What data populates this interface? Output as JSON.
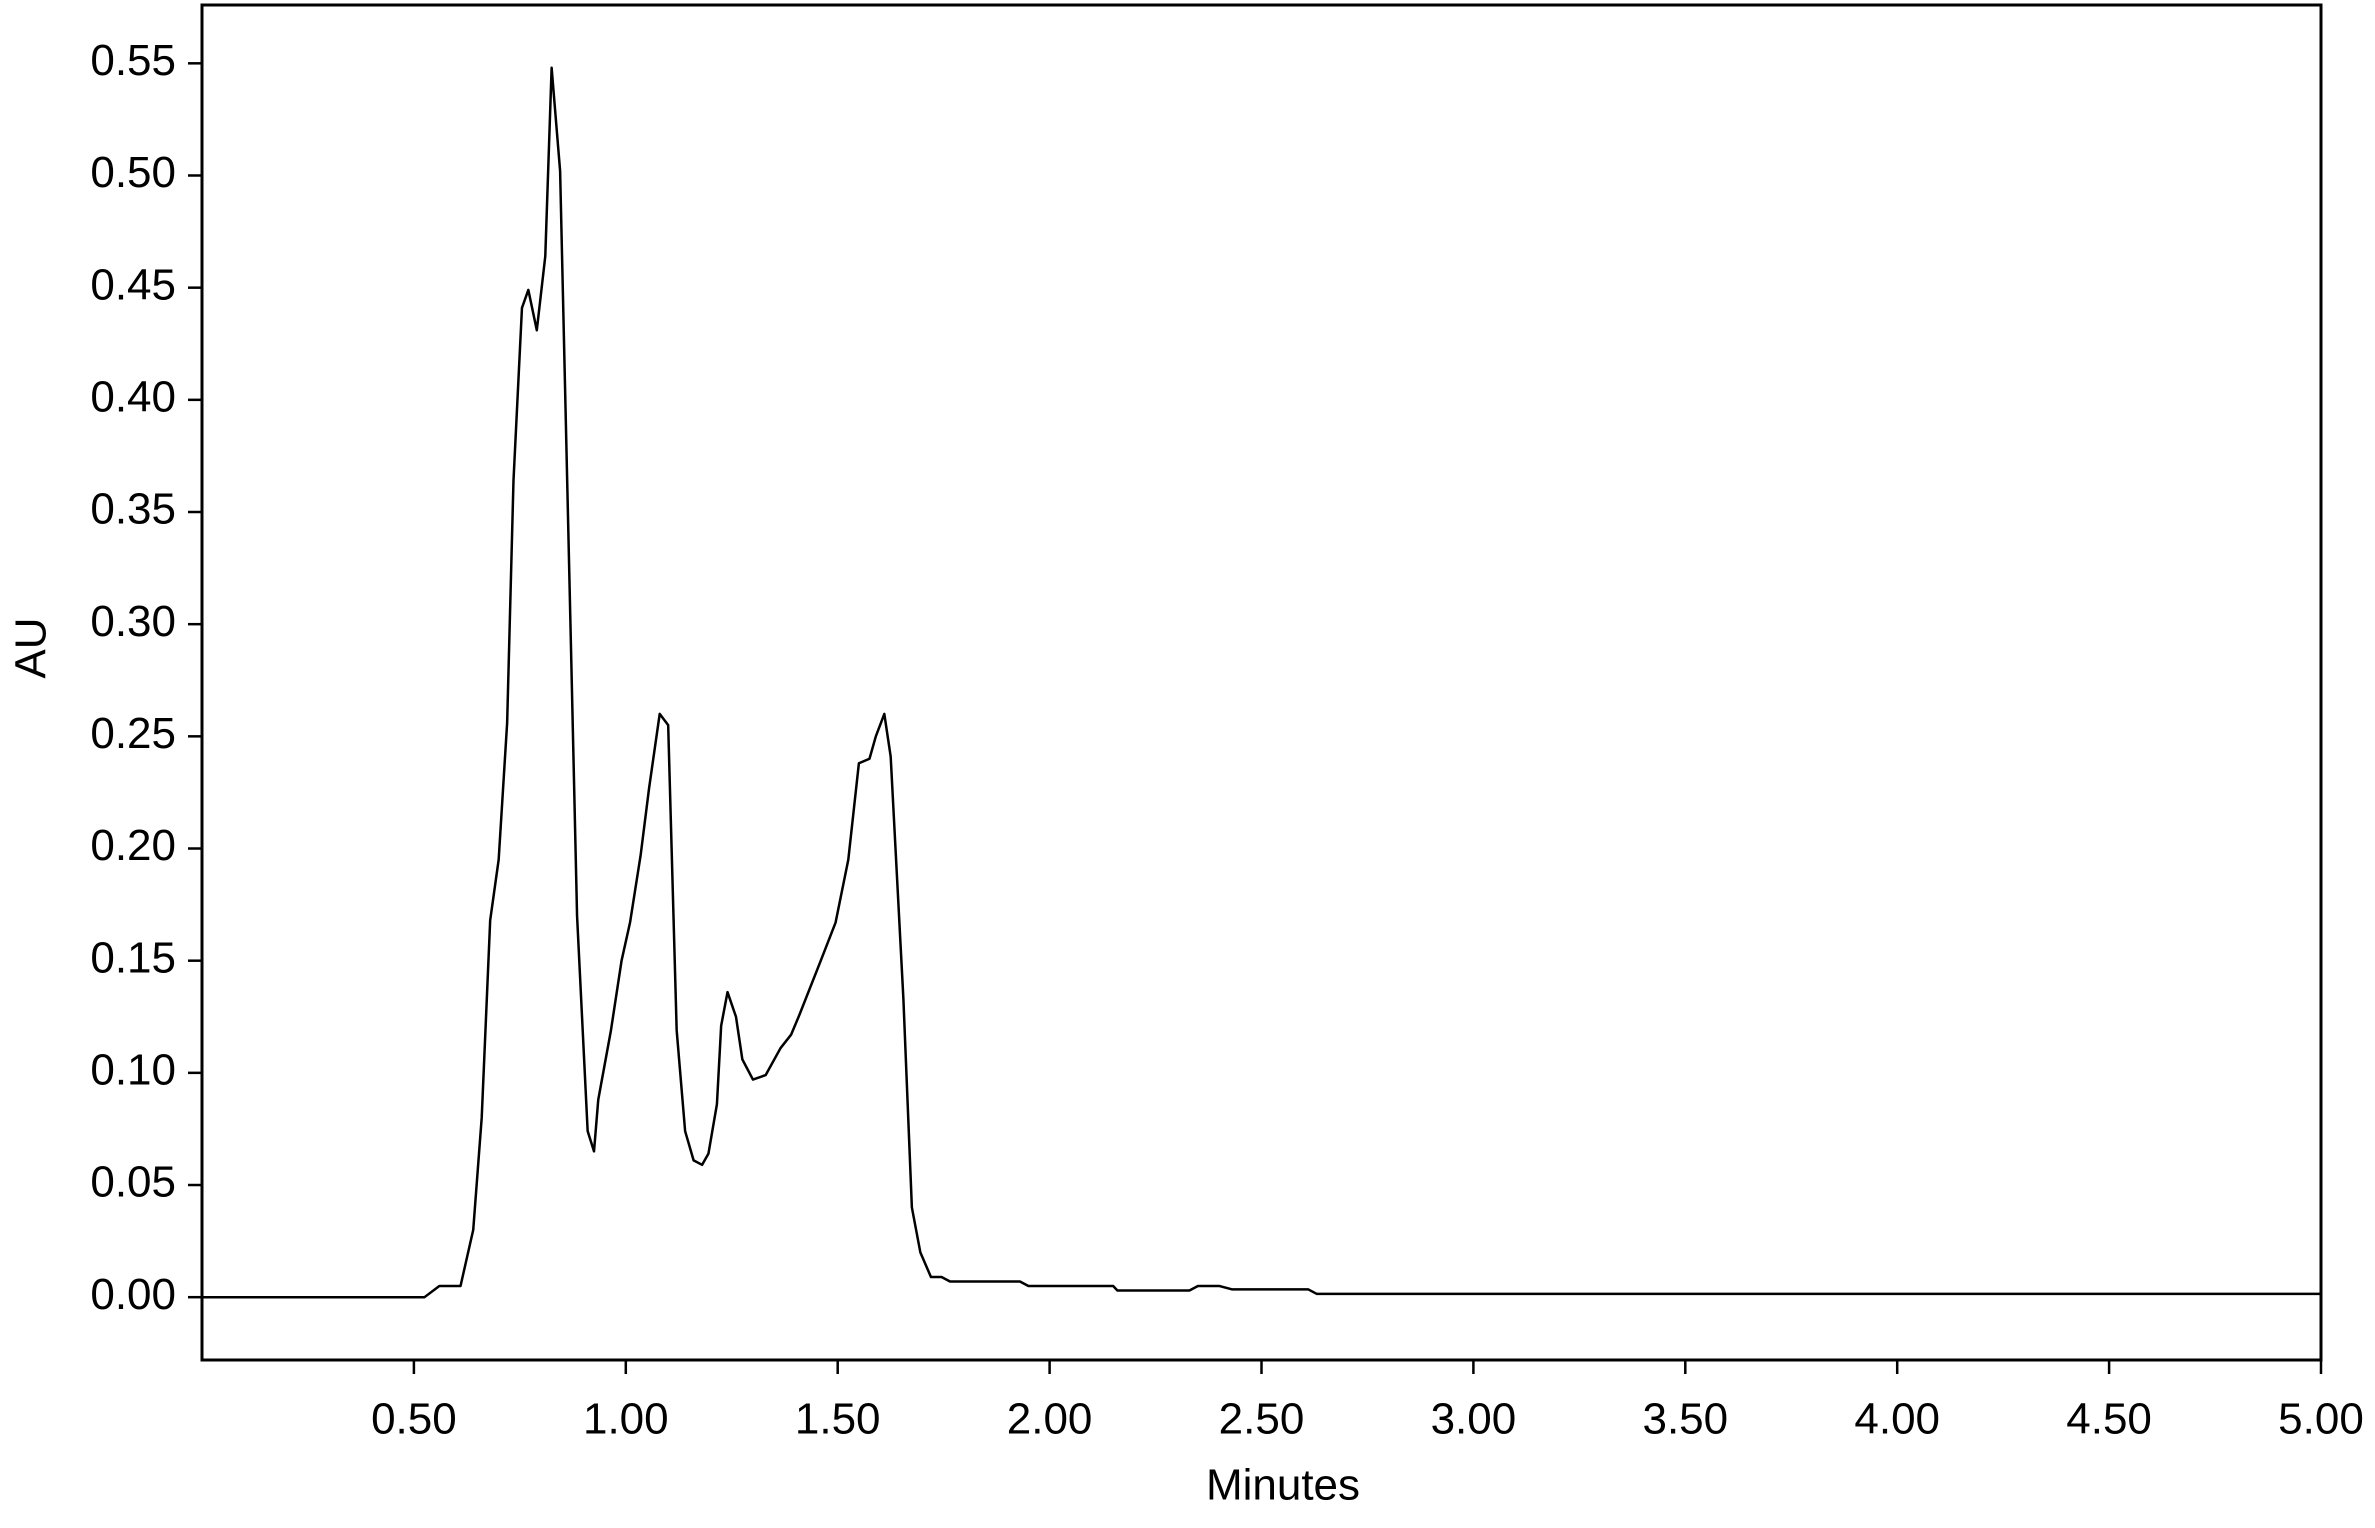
{
  "chart_data": {
    "type": "line",
    "xlabel": "Minutes",
    "ylabel": "AU",
    "xlim": [
      0,
      5
    ],
    "ylim": [
      -0.028,
      0.576
    ],
    "xticks": [
      {
        "value": 0.5,
        "label": "0.50"
      },
      {
        "value": 1,
        "label": "1.00"
      },
      {
        "value": 1.5,
        "label": "1.50"
      },
      {
        "value": 2,
        "label": "2.00"
      },
      {
        "value": 2.5,
        "label": "2.50"
      },
      {
        "value": 3,
        "label": "3.00"
      },
      {
        "value": 3.5,
        "label": "3.50"
      },
      {
        "value": 4,
        "label": "4.00"
      },
      {
        "value": 4.5,
        "label": "4.50"
      },
      {
        "value": 5,
        "label": "5.00"
      }
    ],
    "yticks": [
      {
        "value": 0,
        "label": "0.00"
      },
      0.05,
      {
        "value": 0.1,
        "label": "0.10"
      },
      0.15,
      {
        "value": 0.2,
        "label": "0.20"
      },
      0.25,
      {
        "value": 0.3,
        "label": "0.30"
      },
      0.35,
      {
        "value": 0.4,
        "label": "0.40"
      },
      0.45,
      {
        "value": 0.5,
        "label": "0.50"
      },
      0.55
    ],
    "color": "#000000",
    "x": [
      0,
      0.525,
      0.56,
      0.61,
      0.64,
      0.66,
      0.68,
      0.7,
      0.72,
      0.735,
      0.755,
      0.77,
      0.79,
      0.81,
      0.825,
      0.845,
      0.87,
      0.885,
      0.91,
      0.925,
      0.935,
      0.965,
      0.99,
      1.01,
      1.035,
      1.055,
      1.08,
      1.1,
      1.12,
      1.14,
      1.16,
      1.18,
      1.195,
      1.215,
      1.225,
      1.24,
      1.26,
      1.275,
      1.3,
      1.33,
      1.365,
      1.39,
      1.41,
      1.46,
      1.495,
      1.525,
      1.55,
      1.575,
      1.59,
      1.61,
      1.625,
      1.655,
      1.675,
      1.695,
      1.72,
      1.745,
      1.765,
      1.93,
      1.95,
      2.15,
      2.16,
      2.33,
      2.35,
      2.4,
      2.43,
      2.61,
      2.63,
      5
    ],
    "values": [
      0,
      0,
      0.005,
      0.005,
      0.03,
      0.08,
      0.168,
      0.195,
      0.256,
      0.364,
      0.441,
      0.449,
      0.431,
      0.464,
      0.548,
      0.502,
      0.295,
      0.17,
      0.074,
      0.065,
      0.088,
      0.119,
      0.15,
      0.167,
      0.197,
      0.227,
      0.26,
      0.255,
      0.119,
      0.074,
      0.061,
      0.059,
      0.064,
      0.086,
      0.121,
      0.136,
      0.125,
      0.106,
      0.097,
      0.099,
      0.111,
      0.117,
      0.126,
      0.15,
      0.167,
      0.195,
      0.238,
      0.24,
      0.25,
      0.26,
      0.241,
      0.133,
      0.04,
      0.02,
      0.009,
      0.009,
      0.007,
      0.007,
      0.005,
      0.005,
      0.003,
      0.003,
      0.005,
      0.005,
      0.0035,
      0.0035,
      0.0015,
      0.0015
    ]
  }
}
